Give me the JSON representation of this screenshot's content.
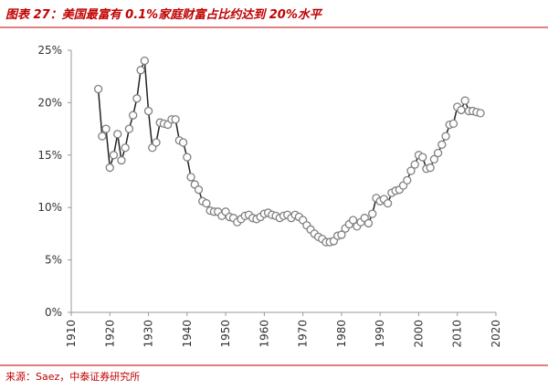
{
  "chart_data": {
    "type": "line",
    "title": "图表 27：美国最富有 0.1%家庭财富占比约达到 20%水平",
    "source": "来源：Saez，中泰证券研究所",
    "x": [
      1917,
      1918,
      1919,
      1920,
      1921,
      1922,
      1923,
      1924,
      1925,
      1926,
      1927,
      1928,
      1929,
      1930,
      1931,
      1932,
      1933,
      1934,
      1935,
      1936,
      1937,
      1938,
      1939,
      1940,
      1941,
      1942,
      1943,
      1944,
      1945,
      1946,
      1947,
      1948,
      1949,
      1950,
      1951,
      1952,
      1953,
      1954,
      1955,
      1956,
      1957,
      1958,
      1959,
      1960,
      1961,
      1962,
      1963,
      1964,
      1965,
      1966,
      1967,
      1968,
      1969,
      1970,
      1971,
      1972,
      1973,
      1974,
      1975,
      1976,
      1977,
      1978,
      1979,
      1980,
      1981,
      1982,
      1983,
      1984,
      1985,
      1986,
      1987,
      1988,
      1989,
      1990,
      1991,
      1992,
      1993,
      1994,
      1995,
      1996,
      1997,
      1998,
      1999,
      2000,
      2001,
      2002,
      2003,
      2004,
      2005,
      2006,
      2007,
      2008,
      2009,
      2010,
      2011,
      2012,
      2013,
      2014,
      2015,
      2016
    ],
    "values": [
      21.3,
      16.8,
      17.5,
      13.8,
      15.0,
      17.0,
      14.5,
      15.7,
      17.5,
      18.8,
      20.4,
      23.1,
      24.0,
      19.2,
      15.7,
      16.2,
      18.1,
      18.0,
      17.9,
      18.4,
      18.4,
      16.4,
      16.2,
      14.8,
      12.9,
      12.2,
      11.7,
      10.6,
      10.4,
      9.7,
      9.6,
      9.6,
      9.2,
      9.6,
      9.1,
      9.0,
      8.6,
      8.9,
      9.2,
      9.3,
      9.0,
      8.9,
      9.1,
      9.4,
      9.5,
      9.3,
      9.2,
      9.0,
      9.2,
      9.3,
      9.0,
      9.3,
      9.1,
      8.8,
      8.3,
      7.9,
      7.5,
      7.2,
      7.0,
      6.7,
      6.7,
      6.8,
      7.3,
      7.4,
      8.0,
      8.4,
      8.8,
      8.2,
      8.6,
      9.0,
      8.5,
      9.4,
      10.9,
      10.6,
      10.8,
      10.4,
      11.4,
      11.6,
      11.7,
      12.1,
      12.6,
      13.5,
      14.1,
      15.0,
      14.8,
      13.7,
      13.8,
      14.6,
      15.2,
      16.0,
      16.8,
      17.9,
      18.0,
      19.6,
      19.3,
      20.2,
      19.2,
      19.2,
      19.1,
      19.0
    ],
    "color": "#222222",
    "marker_color": "#808080",
    "xlim": [
      1910,
      2020
    ],
    "xticks": [
      1910,
      1920,
      1930,
      1940,
      1950,
      1960,
      1970,
      1980,
      1990,
      2000,
      2010,
      2020
    ],
    "ylim": [
      0,
      25
    ],
    "yticks": [
      {
        "value": 0,
        "label": "0%"
      },
      {
        "value": 5,
        "label": "5%"
      },
      {
        "value": 10,
        "label": "10%"
      },
      {
        "value": 15,
        "label": "15%"
      },
      {
        "value": 20,
        "label": "20%"
      },
      {
        "value": 25,
        "label": "25%"
      }
    ]
  }
}
